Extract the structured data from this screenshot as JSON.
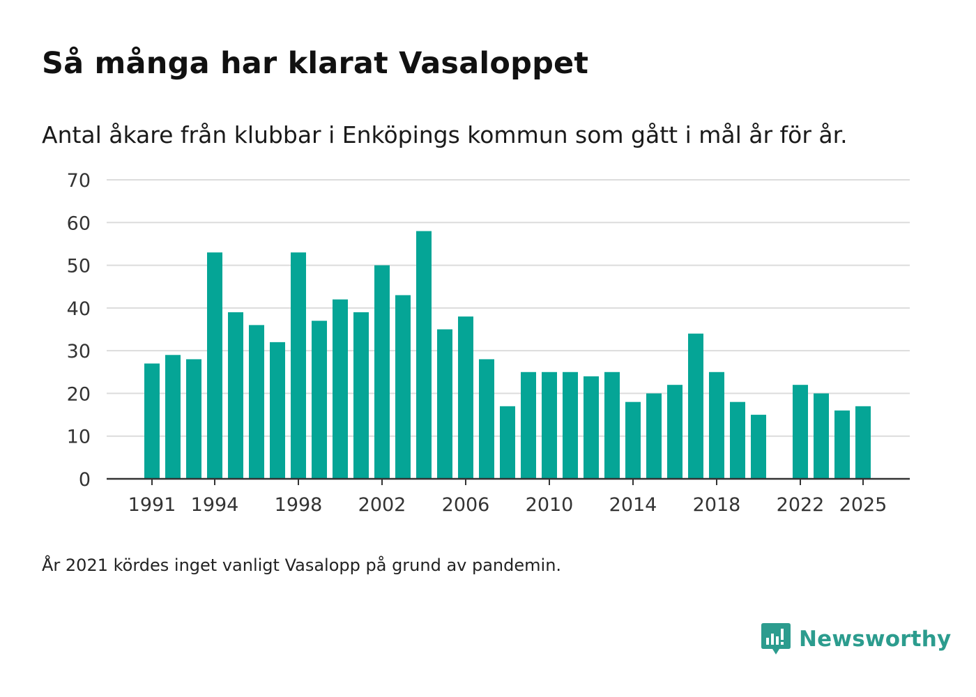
{
  "title": "Så många har klarat Vasaloppet",
  "subtitle": "Antal åkare från klubbar i Enköpings kommun som gått i mål år för år.",
  "note": "År 2021 kördes inget vanligt Vasalopp på grund av pandemin.",
  "brand": {
    "name": "Newsworthy",
    "icon": "newsworthy-logo-icon"
  },
  "colors": {
    "bar": "#05a596",
    "grid": "#dcdcdc",
    "axis": "#333333",
    "brand": "#2c9c8e"
  },
  "chart_data": {
    "type": "bar",
    "title": "Så många har klarat Vasaloppet",
    "xlabel": "",
    "ylabel": "",
    "ylim": [
      0,
      70
    ],
    "yticks": [
      0,
      10,
      20,
      30,
      40,
      50,
      60,
      70
    ],
    "xticks": [
      1991,
      1994,
      1998,
      2002,
      2006,
      2010,
      2014,
      2018,
      2022,
      2025
    ],
    "categories": [
      1991,
      1992,
      1993,
      1994,
      1995,
      1996,
      1997,
      1998,
      1999,
      2000,
      2001,
      2002,
      2003,
      2004,
      2005,
      2006,
      2007,
      2008,
      2009,
      2010,
      2011,
      2012,
      2013,
      2014,
      2015,
      2016,
      2017,
      2018,
      2019,
      2020,
      2021,
      2022,
      2023,
      2024,
      2025
    ],
    "values": [
      27,
      29,
      28,
      53,
      39,
      36,
      32,
      53,
      37,
      42,
      39,
      50,
      43,
      58,
      35,
      38,
      28,
      17,
      25,
      25,
      25,
      24,
      25,
      18,
      20,
      22,
      34,
      25,
      18,
      15,
      null,
      22,
      20,
      16,
      17
    ],
    "grid": true
  }
}
